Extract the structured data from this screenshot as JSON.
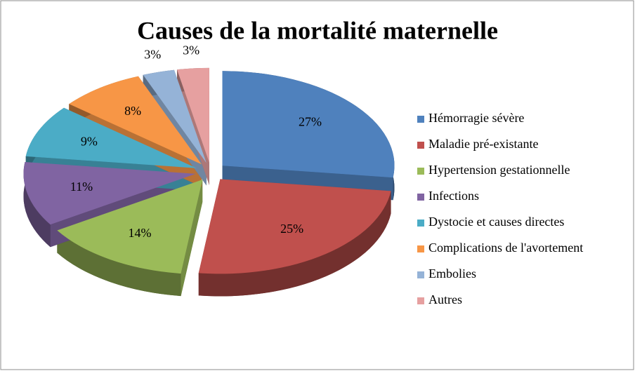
{
  "chart_data": {
    "type": "pie",
    "title": "Causes de la mortalité maternelle",
    "categories": [
      "Hémorragie sévère",
      "Maladie pré-existante",
      "Hypertension gestationnelle",
      "Infections",
      "Dystocie et causes directes",
      "Complications de l'avortement",
      "Embolies",
      "Autres"
    ],
    "values": [
      27,
      25,
      14,
      11,
      9,
      8,
      3,
      3
    ],
    "value_labels": [
      "27%",
      "25%",
      "14%",
      "11%",
      "9%",
      "8%",
      "3%",
      "3%"
    ],
    "colors": [
      "#4f81bd",
      "#c0504d",
      "#9bbb59",
      "#8064a2",
      "#4bacc6",
      "#f79646",
      "#95b3d7",
      "#e6a0a0"
    ],
    "legend": "right"
  }
}
